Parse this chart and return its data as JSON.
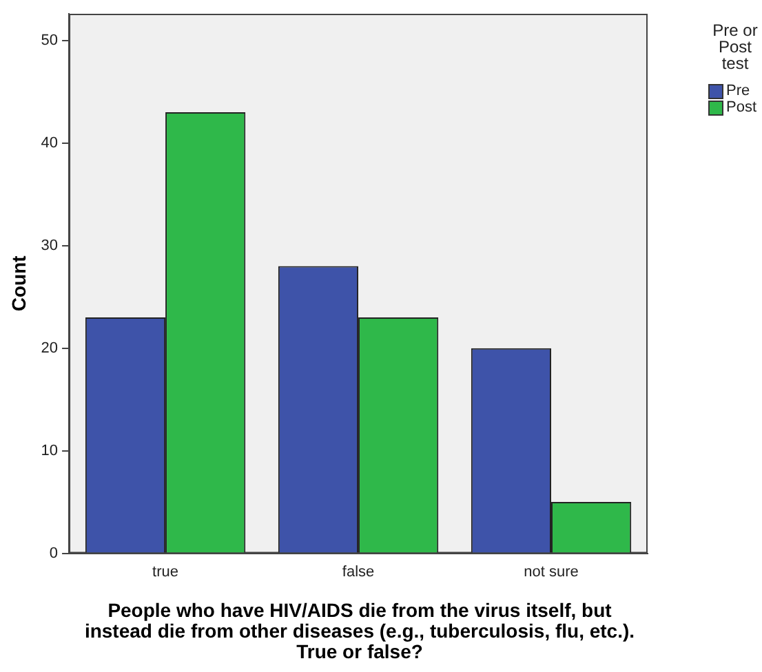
{
  "chart_data": {
    "type": "bar",
    "ylabel": "Count",
    "xlabel": "People who have HIV/AIDS die from the virus itself, but instead die from other diseases (e.g., tuberculosis, flu, etc.).  True or false?",
    "legend_title": "Pre or Post test",
    "legend": "right",
    "grid": false,
    "categories": [
      "true",
      "false",
      "not sure"
    ],
    "series": [
      {
        "name": "Pre",
        "color": "#3e53a9",
        "values": [
          23,
          28,
          20
        ]
      },
      {
        "name": "Post",
        "color": "#2fb84a",
        "values": [
          43,
          23,
          5
        ]
      }
    ],
    "ylim": [
      0,
      52.6
    ],
    "yticks": [
      0,
      10,
      20,
      30,
      40,
      50
    ]
  }
}
